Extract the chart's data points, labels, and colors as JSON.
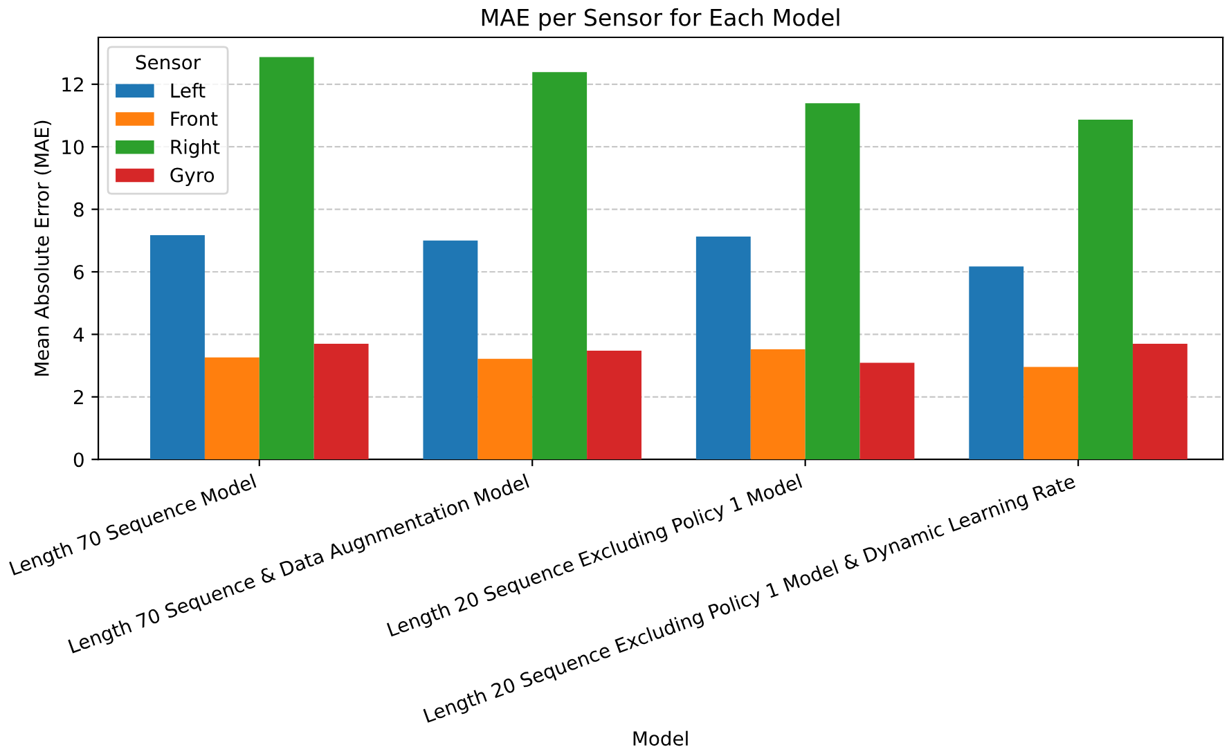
{
  "chart_data": {
    "type": "bar",
    "title": "MAE per Sensor for Each Model",
    "xlabel": "Model",
    "ylabel": "Mean Absolute Error (MAE)",
    "legend_title": "Sensor",
    "categories": [
      "Length 70 Sequence Model",
      "Length 70 Sequence & Data Augnmentation Model",
      "Length 20 Sequence Excluding Policy 1 Model",
      "Length 20 Sequence Excluding Policy 1 Model & Dynamic Learning Rate"
    ],
    "series": [
      {
        "name": "Left",
        "color": "#1f77b4",
        "values": [
          7.17,
          7.0,
          7.13,
          6.17
        ]
      },
      {
        "name": "Front",
        "color": "#ff7f0e",
        "values": [
          3.26,
          3.22,
          3.52,
          2.96
        ]
      },
      {
        "name": "Right",
        "color": "#2ca02c",
        "values": [
          12.87,
          12.39,
          11.39,
          10.87
        ]
      },
      {
        "name": "Gyro",
        "color": "#d62728",
        "values": [
          3.7,
          3.48,
          3.09,
          3.7
        ]
      }
    ],
    "ylim": [
      0,
      13.5
    ],
    "yticks": [
      0,
      2,
      4,
      6,
      8,
      10,
      12
    ],
    "grid": "y",
    "legend": "top left"
  }
}
